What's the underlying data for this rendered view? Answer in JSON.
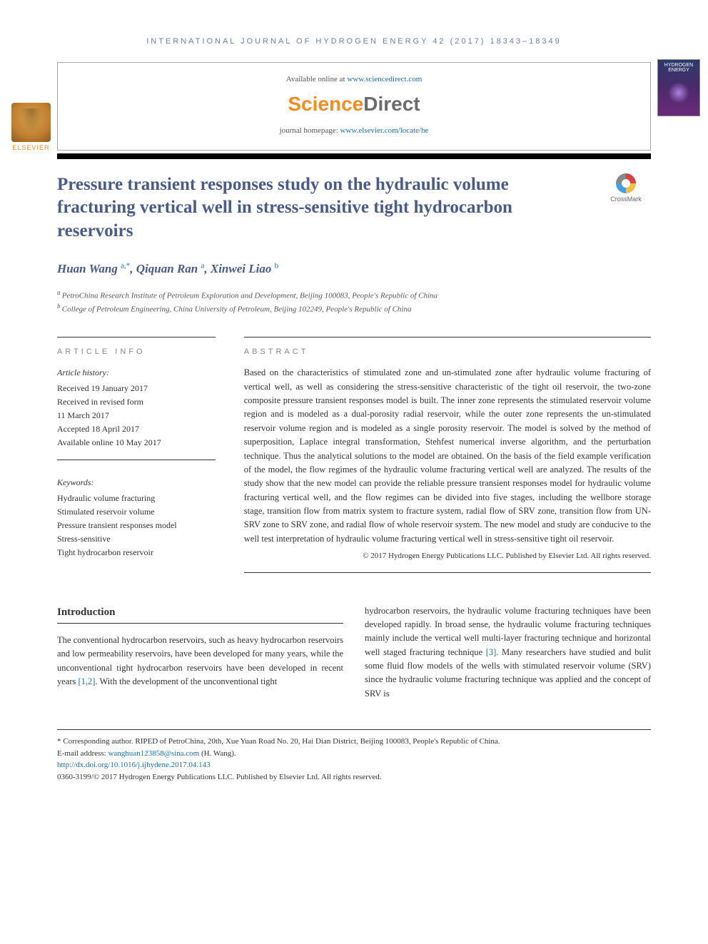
{
  "journal_header": "INTERNATIONAL JOURNAL OF HYDROGEN ENERGY 42 (2017) 18343–18349",
  "top": {
    "available": "Available online at ",
    "available_link": "www.sciencedirect.com",
    "sd_prefix": "Science",
    "sd_suffix": "Direct",
    "homepage_label": "journal homepage: ",
    "homepage_link": "www.elsevier.com/locate/he",
    "elsevier": "ELSEVIER",
    "cover_title": "HYDROGEN ENERGY"
  },
  "crossmark": "CrossMark",
  "title": "Pressure transient responses study on the hydraulic volume fracturing vertical well in stress-sensitive tight hydrocarbon reservoirs",
  "authors": [
    {
      "name": "Huan Wang",
      "sup": "a,*"
    },
    {
      "name": "Qiquan Ran",
      "sup": "a"
    },
    {
      "name": "Xinwei Liao",
      "sup": "b"
    }
  ],
  "affiliations": [
    {
      "sup": "a",
      "text": "PetroChina Research Institute of Petroleum Exploration and Development, Beijing 100083, People's Republic of China"
    },
    {
      "sup": "b",
      "text": "College of Petroleum Engineering, China University of Petroleum, Beijing 102249, People's Republic of China"
    }
  ],
  "info_labels": {
    "article_info": "ARTICLE INFO",
    "abstract": "ABSTRACT"
  },
  "history": {
    "heading": "Article history:",
    "lines": [
      "Received 19 January 2017",
      "Received in revised form",
      "11 March 2017",
      "Accepted 18 April 2017",
      "Available online 10 May 2017"
    ]
  },
  "keywords": {
    "heading": "Keywords:",
    "items": [
      "Hydraulic volume fracturing",
      "Stimulated reservoir volume",
      "Pressure transient responses model",
      "Stress-sensitive",
      "Tight hydrocarbon reservoir"
    ]
  },
  "abstract": "Based on the characteristics of stimulated zone and un-stimulated zone after hydraulic volume fracturing of vertical well, as well as considering the stress-sensitive characteristic of the tight oil reservoir, the two-zone composite pressure transient responses model is built. The inner zone represents the stimulated reservoir volume region and is modeled as a dual-porosity radial reservoir, while the outer zone represents the un-stimulated reservoir volume region and is modeled as a single porosity reservoir. The model is solved by the method of superposition, Laplace integral transformation, Stehfest numerical inverse algorithm, and the perturbation technique. Thus the analytical solutions to the model are obtained. On the basis of the field example verification of the model, the flow regimes of the hydraulic volume fracturing vertical well are analyzed. The results of the study show that the new model can provide the reliable pressure transient responses model for hydraulic volume fracturing vertical well, and the flow regimes can be divided into five stages, including the wellbore storage stage, transition flow from matrix system to fracture system, radial flow of SRV zone, transition flow from UN-SRV zone to SRV zone, and radial flow of whole reservoir system. The new model and study are conducive to the well test interpretation of hydraulic volume fracturing vertical well in stress-sensitive tight oil reservoir.",
  "abstract_copyright": "© 2017 Hydrogen Energy Publications LLC. Published by Elsevier Ltd. All rights reserved.",
  "intro": {
    "heading": "Introduction",
    "col1_part1": "The conventional hydrocarbon reservoirs, such as heavy hydrocarbon reservoirs and low permeability reservoirs, have been developed for many years, while the unconventional tight hydrocarbon reservoirs have been developed in recent years ",
    "col1_ref1": "[1,2]",
    "col1_part2": ". With the development of the unconventional tight",
    "col2_part1": "hydrocarbon reservoirs, the hydraulic volume fracturing techniques have been developed rapidly. In broad sense, the hydraulic volume fracturing techniques mainly include the vertical well multi-layer fracturing technique and horizontal well staged fracturing technique ",
    "col2_ref1": "[3]",
    "col2_part2": ". Many researchers have studied and bulit some fluid flow models of the wells with stimulated reservoir volume (SRV) since the hydraulic volume fracturing technique was applied and the concept of SRV is"
  },
  "footnotes": {
    "corr": "* Corresponding author. RIPED of PetroChina, 20th, Xue Yuan Road No. 20, Hai Dian District, Beijing 100083, People's Republic of China.",
    "email_label": "E-mail address: ",
    "email": "wanghuan123858@sina.com",
    "email_suffix": " (H. Wang).",
    "doi": "http://dx.doi.org/10.1016/j.ijhydene.2017.04.143",
    "issn": "0360-3199/© 2017 Hydrogen Energy Publications LLC. Published by Elsevier Ltd. All rights reserved."
  },
  "colors": {
    "heading_blue": "#4a5a8a",
    "link_blue": "#1a6fb8",
    "elsevier_orange": "#f68b1f"
  }
}
